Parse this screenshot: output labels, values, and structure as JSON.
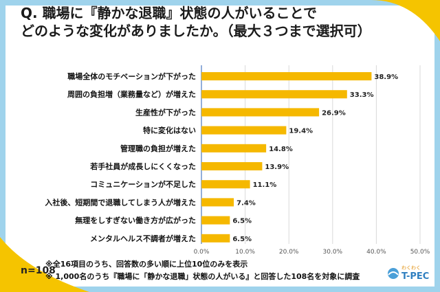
{
  "title_line1": "Q. 職場に『静かな退職』状態の人がいることで",
  "title_line2": "どのような変化がありましたか。（最大３つまで選択可）",
  "n_label": "n=108",
  "notes": [
    "※全16項目のうち、回答数の多い順に上位10位のみを表示",
    "※ 1,000名のうち『職場に「静かな退職」状態の人がいる』と回答した108名を対象に調査"
  ],
  "logo_text": "T-PEC",
  "logo_small": "わくわく",
  "colors": {
    "bar": "#f5b800",
    "axis": "#4a78c2",
    "frame": "#9fd3ec",
    "accent_yellow": "#f5c400"
  },
  "chart_data": {
    "type": "bar",
    "orientation": "horizontal",
    "categories": [
      "職場全体のモチベーションが下がった",
      "周囲の負担増（業務量など）が増えた",
      "生産性が下がった",
      "特に変化はない",
      "管理職の負担が増えた",
      "若手社員が成長しにくくなった",
      "コミュニケーションが不足した",
      "入社後、短期間で退職してしまう人が増えた",
      "無理をしすぎない働き方が広がった",
      "メンタルヘルス不調者が増えた"
    ],
    "values": [
      38.9,
      33.3,
      26.9,
      19.4,
      14.8,
      13.9,
      11.1,
      7.4,
      6.5,
      6.5
    ],
    "value_labels": [
      "38.9%",
      "33.3%",
      "26.9%",
      "19.4%",
      "14.8%",
      "13.9%",
      "11.1%",
      "7.4%",
      "6.5%",
      "6.5%"
    ],
    "xlim": [
      0,
      50
    ],
    "ticks": [
      "0.0%",
      "10.0%",
      "20.0%",
      "30.0%",
      "40.0%",
      "50.0%"
    ],
    "tick_values": [
      0,
      10,
      20,
      30,
      40,
      50
    ],
    "grid": true
  }
}
